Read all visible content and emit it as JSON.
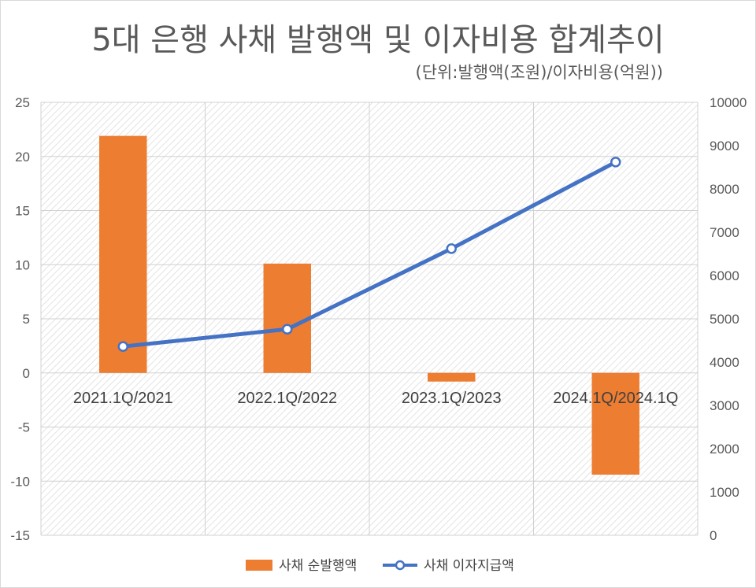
{
  "chart_data": {
    "type": "bar+line",
    "title": "5대 은행 사채 발행액 및 이자비용 합계추이",
    "subtitle": "(단위:발행액(조원)/이자비용(억원))",
    "categories": [
      "2021.1Q/2021",
      "2022.1Q/2022",
      "2023.1Q/2023",
      "2024.1Q/2024.1Q"
    ],
    "series": [
      {
        "name": "사채 순발행액",
        "type": "bar",
        "axis": "left",
        "color": "#ED7D31",
        "values": [
          21.9,
          10.1,
          -0.8,
          -9.4
        ]
      },
      {
        "name": "사채 이자지급액",
        "type": "line",
        "axis": "right",
        "color": "#4472C4",
        "values": [
          4360,
          4760,
          6620,
          8620
        ]
      }
    ],
    "y_left": {
      "min": -15,
      "max": 25,
      "step": 5,
      "ticks": [
        "25",
        "20",
        "15",
        "10",
        "5",
        "0",
        "-5",
        "-10",
        "-15"
      ]
    },
    "y_right": {
      "min": 0,
      "max": 10000,
      "step": 1000,
      "ticks": [
        "10000",
        "9000",
        "8000",
        "7000",
        "6000",
        "5000",
        "4000",
        "3000",
        "2000",
        "1000",
        "0"
      ]
    },
    "grid": true,
    "legend": "bottom"
  }
}
